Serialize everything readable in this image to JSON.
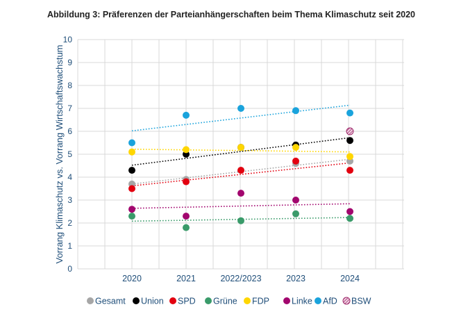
{
  "title": "Abbildung 3: Präferenzen der Parteianhängerschaften beim Thema Klimaschutz seit 2020",
  "chart_data": {
    "type": "scatter",
    "categories": [
      "2020",
      "2021",
      "2022/2023",
      "2023",
      "2024"
    ],
    "ylabel": "Vorrang Klimaschutz vs. Vorrang Wirtschaftswachstum",
    "xlabel": "",
    "ylim": [
      0,
      10
    ],
    "yticks": [
      0,
      1,
      2,
      3,
      4,
      5,
      6,
      7,
      8,
      9,
      10
    ],
    "grid": true,
    "trendlines": "linear, dotted",
    "legend_position": "bottom",
    "series": [
      {
        "name": "Gesamt",
        "color": "#a6a6a6",
        "values": [
          3.7,
          3.9,
          4.3,
          4.6,
          4.7
        ]
      },
      {
        "name": "Union",
        "color": "#000000",
        "values": [
          4.3,
          5.0,
          5.3,
          5.4,
          5.6
        ]
      },
      {
        "name": "SPD",
        "color": "#e3000f",
        "values": [
          3.5,
          3.8,
          4.3,
          4.7,
          4.3
        ]
      },
      {
        "name": "Grüne",
        "color": "#3a9b6a",
        "values": [
          2.3,
          1.8,
          2.1,
          2.4,
          2.2
        ]
      },
      {
        "name": "FDP",
        "color": "#ffd600",
        "values": [
          5.1,
          5.2,
          5.3,
          5.3,
          4.9
        ]
      },
      {
        "name": "Linke",
        "color": "#a2066e",
        "values": [
          2.6,
          2.3,
          3.3,
          3.0,
          2.5
        ]
      },
      {
        "name": "AfD",
        "color": "#1aa3dc",
        "values": [
          5.5,
          6.7,
          7.0,
          6.9,
          6.8
        ]
      },
      {
        "name": "BSW",
        "color": "#9e2a6b",
        "pattern": "hatched",
        "values": [
          null,
          null,
          null,
          null,
          6.0
        ]
      }
    ]
  }
}
